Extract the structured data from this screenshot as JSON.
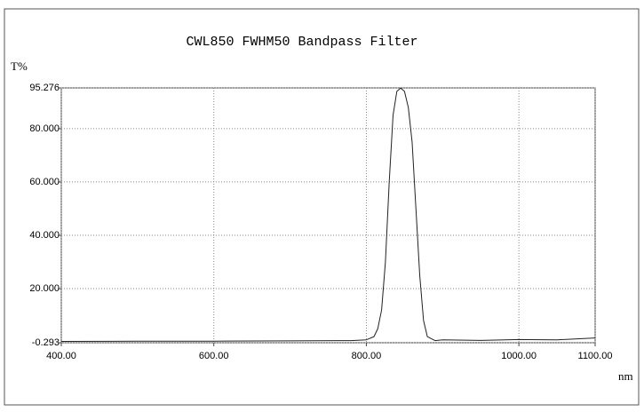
{
  "chart_data": {
    "type": "line",
    "title": "CWL850 FWHM50 Bandpass Filter",
    "y_label": "T%",
    "x_label": "nm",
    "x": [
      400,
      500,
      600,
      700,
      780,
      800,
      810,
      815,
      820,
      825,
      830,
      835,
      840,
      845,
      850,
      855,
      860,
      865,
      870,
      875,
      880,
      890,
      900,
      950,
      1000,
      1050,
      1100
    ],
    "series": [
      {
        "color": "#222222",
        "values": [
          0.2,
          0.3,
          0.3,
          0.4,
          0.5,
          0.8,
          2,
          5,
          12,
          30,
          60,
          85,
          94,
          95.2,
          94,
          88,
          75,
          50,
          25,
          8,
          2,
          0.5,
          0.8,
          0.6,
          0.9,
          0.8,
          1.5
        ]
      }
    ],
    "xlim": [
      400,
      1100
    ],
    "xticks": [
      {
        "value": 400,
        "label": "400.00"
      },
      {
        "value": 600,
        "label": "600.00"
      },
      {
        "value": 800,
        "label": "800.00"
      },
      {
        "value": 1000,
        "label": "1000.00"
      },
      {
        "value": 1100,
        "label": "1100.00"
      }
    ],
    "ylim": [
      -0.293,
      95.276
    ],
    "yticks": [
      {
        "value": -0.293,
        "label": "-0.293"
      },
      {
        "value": 20,
        "label": "20.000"
      },
      {
        "value": 40,
        "label": "40.000"
      },
      {
        "value": 60,
        "label": "60.000"
      },
      {
        "value": 80,
        "label": "80.000"
      },
      {
        "value": 95.276,
        "label": "95.276"
      }
    ],
    "grid": true
  }
}
